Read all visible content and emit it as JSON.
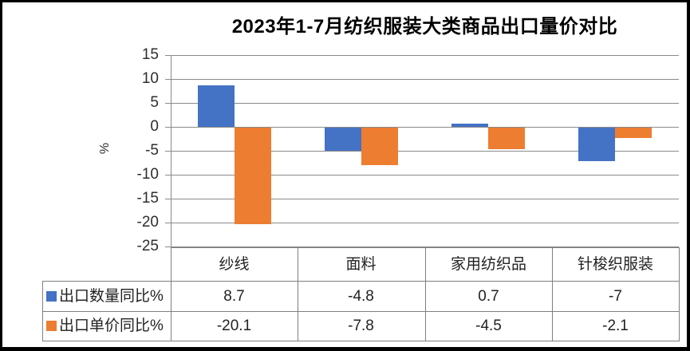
{
  "title": "2023年1-7月纺织服装大类商品出口量价对比",
  "colors": {
    "series_quantity": "#4472C4",
    "series_price": "#ED7D31",
    "gridline": "#8a8a8a",
    "axis": "#8a8a8a",
    "table_border": "#7f7f7f",
    "text": "#2e2e2e",
    "frame_border": "#000000"
  },
  "chart_data": {
    "type": "bar",
    "title": "2023年1-7月纺织服装大类商品出口量价对比",
    "categories": [
      "纱线",
      "面料",
      "家用纺织品",
      "针梭织服装"
    ],
    "series": [
      {
        "name": "出口数量同比%",
        "color": "#4472C4",
        "values": [
          8.7,
          -4.8,
          0.7,
          -7
        ]
      },
      {
        "name": "出口单价同比%",
        "color": "#ED7D31",
        "values": [
          -20.1,
          -7.8,
          -4.5,
          -2.1
        ]
      }
    ],
    "xlabel": "",
    "ylabel": "%",
    "ylim": [
      -25,
      15
    ],
    "yticks": [
      15,
      10,
      5,
      0,
      -5,
      -10,
      -15,
      -20,
      -25
    ],
    "grid": true,
    "legend_position": "data-table-left",
    "data_table": true
  },
  "table": {
    "column_headers": [
      "纱线",
      "面料",
      "家用纺织品",
      "针梭织服装"
    ],
    "rows": [
      {
        "label": "出口数量同比%",
        "swatch_color": "#4472C4",
        "cells": [
          "8.7",
          "-4.8",
          "0.7",
          "-7"
        ]
      },
      {
        "label": "出口单价同比%",
        "swatch_color": "#ED7D31",
        "cells": [
          "-20.1",
          "-7.8",
          "-4.5",
          "-2.1"
        ]
      }
    ]
  }
}
